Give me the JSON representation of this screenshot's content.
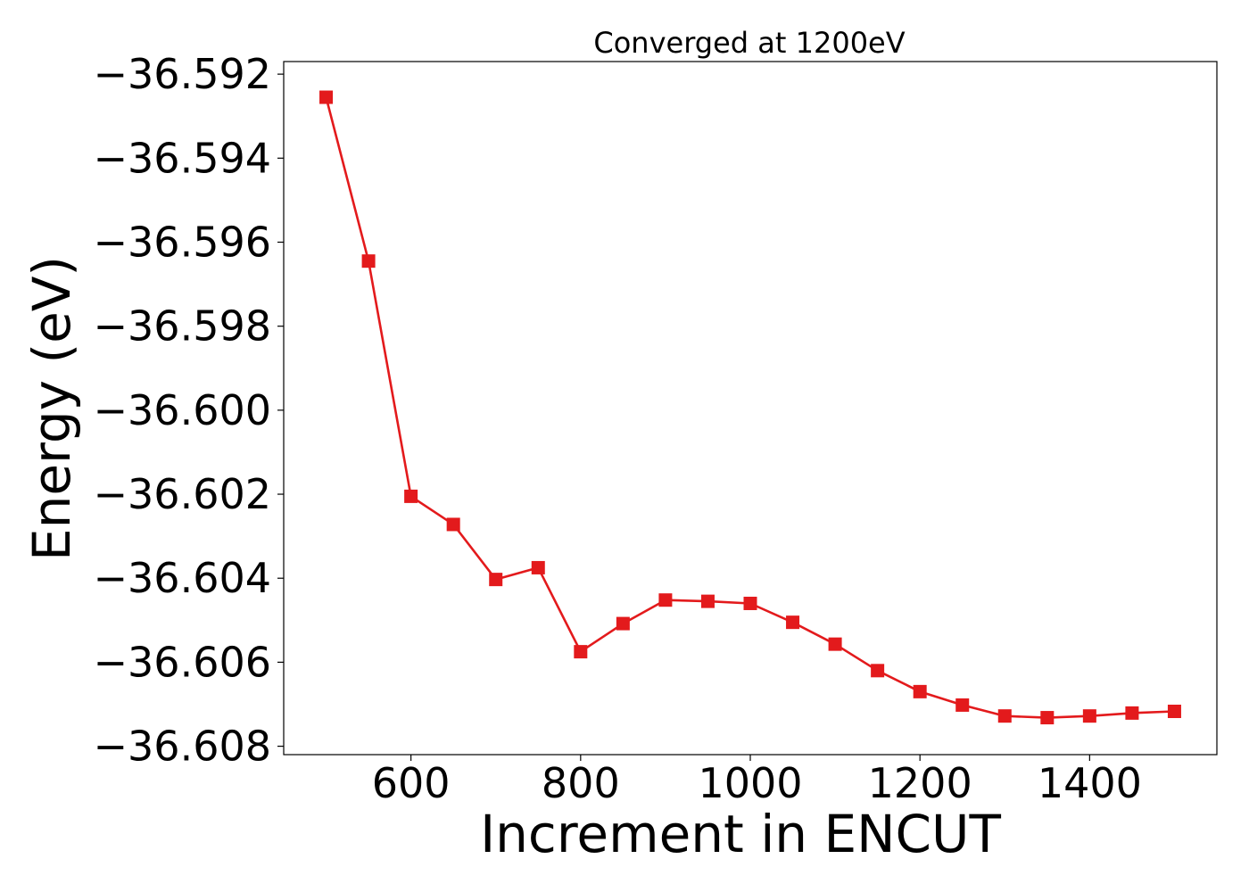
{
  "chart_data": {
    "type": "line",
    "title": "Converged at 1200eV",
    "xlabel": "Increment in ENCUT",
    "ylabel": "Energy (eV)",
    "xlim": [
      450,
      1550
    ],
    "ylim": [
      -36.6082,
      -36.5917
    ],
    "xticks": [
      600,
      800,
      1000,
      1200,
      1400
    ],
    "xtick_labels": [
      "600",
      "800",
      "1000",
      "1200",
      "1400"
    ],
    "yticks": [
      -36.608,
      -36.606,
      -36.604,
      -36.602,
      -36.6,
      -36.598,
      -36.596,
      -36.594,
      -36.592
    ],
    "ytick_labels": [
      "−36.608",
      "−36.606",
      "−36.604",
      "−36.602",
      "−36.600",
      "−36.598",
      "−36.596",
      "−36.594",
      "−36.592"
    ],
    "grid": false,
    "series": [
      {
        "color": "#e31a1c",
        "marker": "square",
        "x": [
          500,
          550,
          600,
          650,
          700,
          750,
          800,
          850,
          900,
          950,
          1000,
          1050,
          1100,
          1150,
          1200,
          1250,
          1300,
          1350,
          1400,
          1450,
          1500
        ],
        "y": [
          -36.59255,
          -36.59645,
          -36.60205,
          -36.60272,
          -36.60403,
          -36.60375,
          -36.60575,
          -36.60508,
          -36.60452,
          -36.60455,
          -36.6046,
          -36.60505,
          -36.60557,
          -36.6062,
          -36.6067,
          -36.60702,
          -36.60728,
          -36.60732,
          -36.60728,
          -36.60721,
          -36.60717
        ]
      }
    ]
  }
}
